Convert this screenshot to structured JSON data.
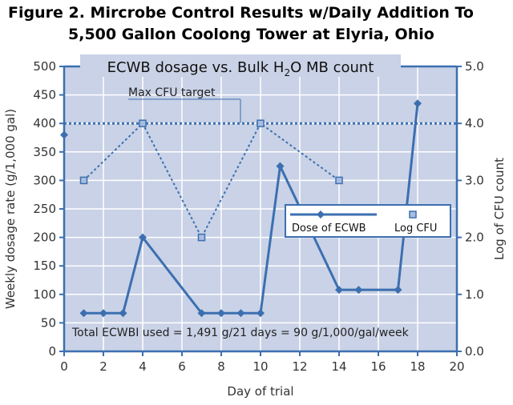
{
  "chart_data": {
    "type": "line",
    "title_line1": "Figure 2. Mircrobe Control Results w/Daily Addition To",
    "title_line2": "5,500 Gallon Coolong Tower at Elyria, Ohio",
    "plot_title_main": "ECWB dosage vs. Bulk H",
    "plot_title_sub": "2",
    "plot_title_end": "O MB count",
    "xlabel": "Day of trial",
    "ylabel_left": "Weekly dosage rate (g/1,000 gal)",
    "ylabel_right": "Log of CFU count",
    "xlim": [
      0,
      20
    ],
    "ylim_left": [
      0,
      500
    ],
    "ylim_right": [
      0,
      5
    ],
    "x_ticks": [
      "0",
      "2",
      "4",
      "6",
      "8",
      "10",
      "12",
      "14",
      "16",
      "18",
      "20"
    ],
    "y_left_ticks": [
      "0",
      "50",
      "100",
      "150",
      "200",
      "250",
      "300",
      "350",
      "400",
      "450",
      "500"
    ],
    "y_right_ticks": [
      "0.0",
      "1.0",
      "2.0",
      "3.0",
      "4.0",
      "5.0"
    ],
    "grid": true,
    "legend_position": "center-right",
    "series": [
      {
        "name": "Dose of ECWB",
        "axis": "left",
        "color": "#3c6fb0",
        "marker": "diamond",
        "line": "solid",
        "points": [
          [
            1,
            67
          ],
          [
            2,
            67
          ],
          [
            3,
            67
          ],
          [
            4,
            200
          ],
          [
            7,
            67
          ],
          [
            8,
            67
          ],
          [
            9,
            67
          ],
          [
            10,
            67
          ],
          [
            11,
            325
          ],
          [
            14,
            108
          ],
          [
            15,
            108
          ],
          [
            17,
            108
          ],
          [
            18,
            435
          ]
        ]
      },
      {
        "name": "Log CFU",
        "axis": "right",
        "color": "#3c6fb0",
        "marker": "square",
        "line": "dotted",
        "points": [
          [
            1,
            3.0
          ],
          [
            4,
            4.0
          ],
          [
            7,
            2.0
          ],
          [
            10,
            4.0
          ],
          [
            14,
            3.0
          ]
        ]
      }
    ],
    "edge_marker_left": 380,
    "target_line": {
      "label": "Max CFU target",
      "value": 4.0,
      "axis": "right"
    },
    "annotation": "Total ECWBI used = 1,491 g/21 days = 90 g/1,000/gal/week",
    "colors": {
      "plot_bg": "#c9d2e6",
      "axis": "#3c6fb0",
      "grid": "#ffffff",
      "line": "#3c6fb0"
    }
  }
}
